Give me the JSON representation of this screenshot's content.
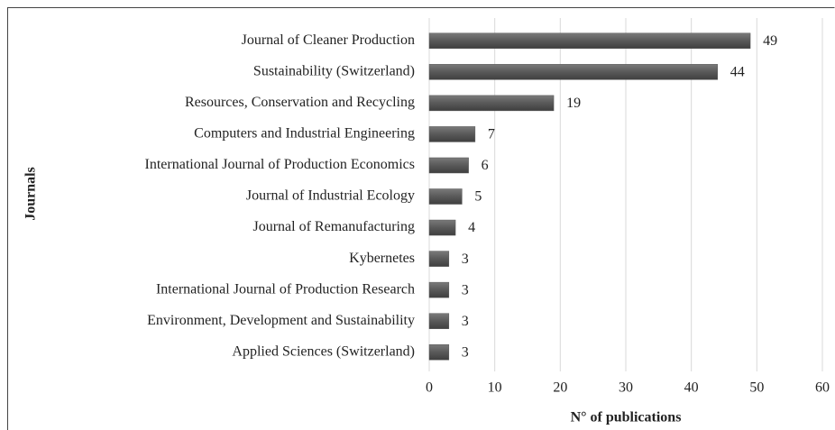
{
  "chart_data": {
    "type": "bar",
    "orientation": "horizontal",
    "categories": [
      "Journal of Cleaner Production",
      "Sustainability (Switzerland)",
      "Resources, Conservation and Recycling",
      "Computers and Industrial Engineering",
      "International Journal of Production Economics",
      "Journal of Industrial Ecology",
      "Journal of Remanufacturing",
      "Kybernetes",
      "International Journal of Production Research",
      "Environment, Development and Sustainability",
      "Applied Sciences (Switzerland)"
    ],
    "values": [
      49,
      44,
      19,
      7,
      6,
      5,
      4,
      3,
      3,
      3,
      3
    ],
    "color": "#595959",
    "xlim": [
      0,
      60
    ],
    "xticks": [
      0,
      10,
      20,
      30,
      40,
      50,
      60
    ],
    "xlabel": "N° of publications",
    "ylabel": "Journals",
    "grid": true
  }
}
